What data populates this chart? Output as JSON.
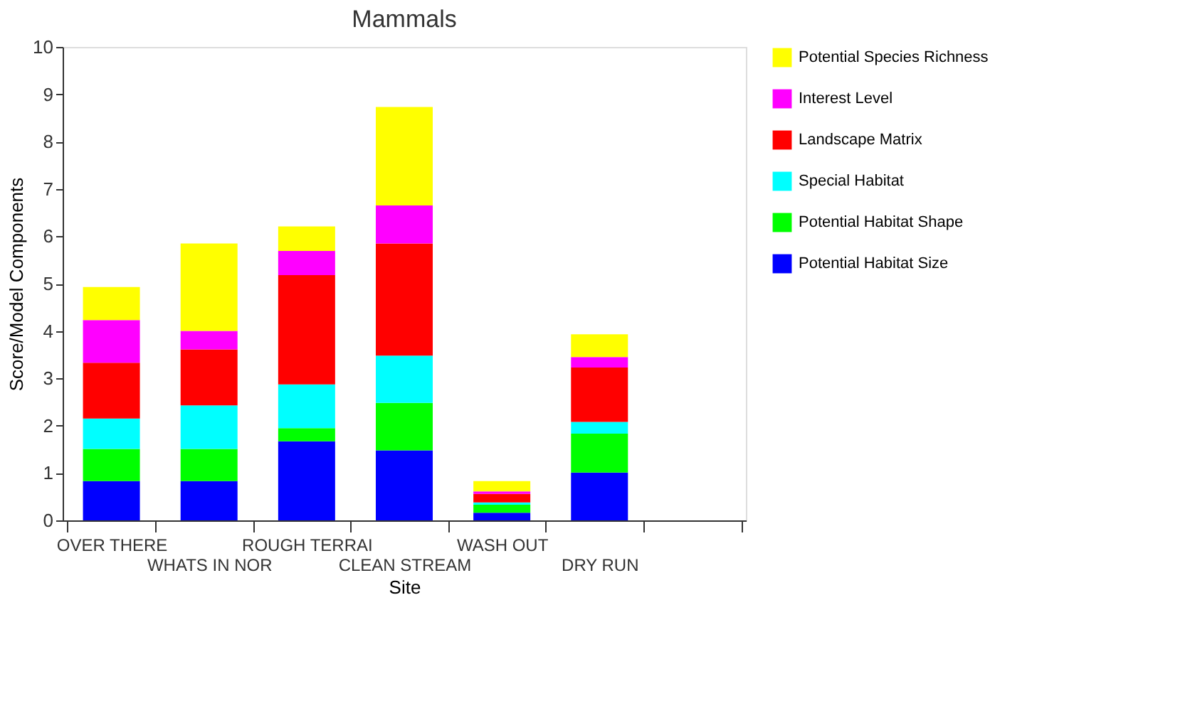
{
  "chart_data": {
    "type": "bar",
    "title": "Mammals",
    "xlabel": "Site",
    "ylabel": "Score/Model Components",
    "stacked": true,
    "categories": [
      "OVER THERE",
      "WHATS IN NOR",
      "ROUGH TERRAI",
      "CLEAN STREAM",
      "WASH OUT",
      "DRY RUN",
      null
    ],
    "series": [
      {
        "name": "Potential Habitat Size",
        "color": "#0000ff",
        "values": [
          0.83,
          0.83,
          1.67,
          1.48,
          0.16,
          1.01,
          null
        ]
      },
      {
        "name": "Potential Habitat Shape",
        "color": "#00ff00",
        "values": [
          0.68,
          0.68,
          0.28,
          1.0,
          0.17,
          0.82,
          null
        ]
      },
      {
        "name": "Special Habitat",
        "color": "#00ffff",
        "values": [
          0.64,
          0.92,
          0.92,
          1.0,
          0.05,
          0.25,
          null
        ]
      },
      {
        "name": "Landscape Matrix",
        "color": "#ff0000",
        "values": [
          1.18,
          1.18,
          2.31,
          2.37,
          0.18,
          1.15,
          null
        ]
      },
      {
        "name": "Interest Level",
        "color": "#ff00ff",
        "values": [
          0.9,
          0.39,
          0.51,
          0.8,
          0.05,
          0.22,
          null
        ]
      },
      {
        "name": "Potential Species Richness",
        "color": "#ffff00",
        "values": [
          0.7,
          1.85,
          0.52,
          2.08,
          0.22,
          0.48,
          null
        ]
      }
    ],
    "ylim": [
      0,
      10
    ],
    "yticks": [
      0,
      1,
      2,
      3,
      4,
      5,
      6,
      7,
      8,
      9,
      10
    ],
    "grid": false,
    "legend": "right"
  }
}
